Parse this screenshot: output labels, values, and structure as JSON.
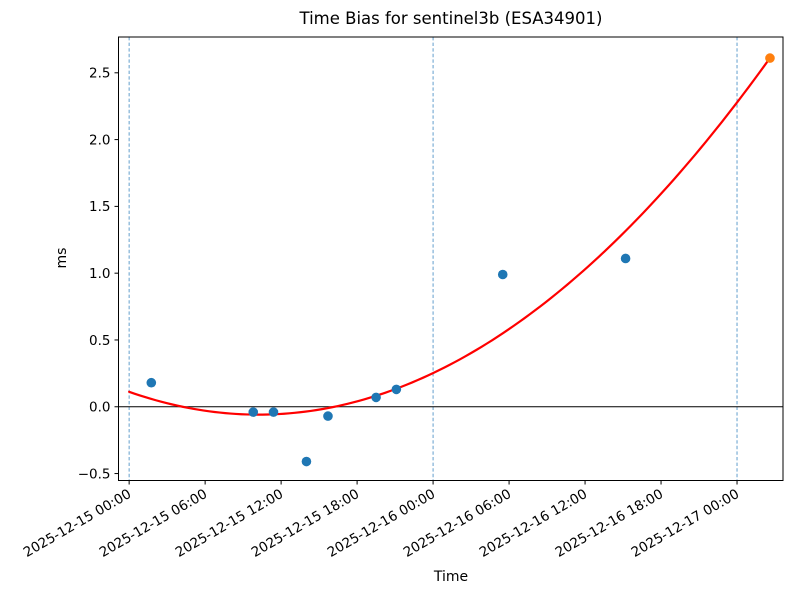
{
  "chart_data": {
    "type": "scatter",
    "title": "Time Bias for sentinel3b (ESA34901)",
    "xlabel": "Time",
    "ylabel": "ms",
    "x_unit_note": "hours since 2025-12-15 00:00",
    "xlim": [
      -0.84,
      51.63
    ],
    "ylim": [
      -0.552,
      2.768
    ],
    "grid": false,
    "legend": "none",
    "x_ticks": [
      {
        "t": 0,
        "label": "2025-12-15 00:00"
      },
      {
        "t": 6,
        "label": "2025-12-15 06:00"
      },
      {
        "t": 12,
        "label": "2025-12-15 12:00"
      },
      {
        "t": 18,
        "label": "2025-12-15 18:00"
      },
      {
        "t": 24,
        "label": "2025-12-16 00:00"
      },
      {
        "t": 30,
        "label": "2025-12-16 06:00"
      },
      {
        "t": 36,
        "label": "2025-12-16 12:00"
      },
      {
        "t": 42,
        "label": "2025-12-16 18:00"
      },
      {
        "t": 48,
        "label": "2025-12-17 00:00"
      }
    ],
    "y_ticks": [
      {
        "v": -0.5,
        "label": "−0.5"
      },
      {
        "v": 0.0,
        "label": "0.0"
      },
      {
        "v": 0.5,
        "label": "0.5"
      },
      {
        "v": 1.0,
        "label": "1.0"
      },
      {
        "v": 1.5,
        "label": "1.5"
      },
      {
        "v": 2.0,
        "label": "2.0"
      },
      {
        "v": 2.5,
        "label": "2.5"
      }
    ],
    "day_boundary_lines": {
      "t": [
        0,
        24,
        48
      ],
      "color": "#639fcd",
      "style": "dashed"
    },
    "zero_line": {
      "v": 0.0,
      "color": "#000000"
    },
    "series": [
      {
        "name": "time-bias-observations",
        "type": "scatter",
        "color": "#1f77b4",
        "points": [
          {
            "t_hours": 1.75,
            "ms": 0.18
          },
          {
            "t_hours": 9.8,
            "ms": -0.04
          },
          {
            "t_hours": 11.4,
            "ms": -0.04
          },
          {
            "t_hours": 14.0,
            "ms": -0.41
          },
          {
            "t_hours": 15.7,
            "ms": -0.07
          },
          {
            "t_hours": 19.5,
            "ms": 0.07
          },
          {
            "t_hours": 21.1,
            "ms": 0.13
          },
          {
            "t_hours": 29.5,
            "ms": 0.99
          },
          {
            "t_hours": 39.2,
            "ms": 1.11
          }
        ]
      },
      {
        "name": "latest-observation",
        "type": "scatter",
        "color": "#ff7f0e",
        "points": [
          {
            "t_hours": 50.6,
            "ms": 2.61
          }
        ]
      },
      {
        "name": "quadratic-fit-line",
        "type": "line",
        "color": "#ff0000",
        "poly": {
          "a": 0.001637,
          "b": -0.03345,
          "c": 0.112
        },
        "t_range": [
          0,
          50.6
        ]
      }
    ]
  }
}
